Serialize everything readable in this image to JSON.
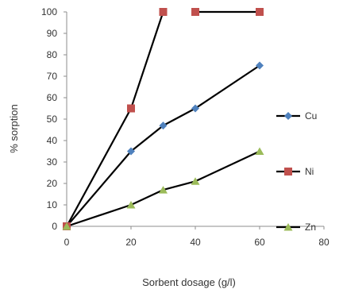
{
  "chart_data": {
    "type": "line",
    "title": "",
    "xlabel": "Sorbent dosage (g/l)",
    "ylabel": "% sorption",
    "xlim": [
      0,
      80
    ],
    "ylim": [
      0,
      100
    ],
    "x_ticks": [
      0,
      20,
      40,
      60,
      80
    ],
    "y_ticks": [
      0,
      10,
      20,
      30,
      40,
      50,
      60,
      70,
      80,
      90,
      100
    ],
    "grid": false,
    "legend_position": "right",
    "series": [
      {
        "name": "Cu",
        "color": "#000000",
        "marker": "diamond",
        "marker_color": "#4f81bd",
        "points": [
          {
            "x": 0,
            "y": 0
          },
          {
            "x": 20,
            "y": 35
          },
          {
            "x": 30,
            "y": 47
          },
          {
            "x": 40,
            "y": 55
          },
          {
            "x": 60,
            "y": 75
          }
        ]
      },
      {
        "name": "Ni",
        "color": "#000000",
        "marker": "square",
        "marker_color": "#c0504d",
        "points": [
          {
            "x": 0,
            "y": 0
          },
          {
            "x": 20,
            "y": 55
          },
          {
            "x": 30,
            "y": 100
          },
          {
            "x": 40,
            "y": 100
          },
          {
            "x": 60,
            "y": 100
          }
        ],
        "line_breaks_after_index": [
          2
        ]
      },
      {
        "name": "Zn",
        "color": "#000000",
        "marker": "triangle",
        "marker_color": "#9bbb59",
        "points": [
          {
            "x": 0,
            "y": 0
          },
          {
            "x": 20,
            "y": 10
          },
          {
            "x": 30,
            "y": 17
          },
          {
            "x": 40,
            "y": 21
          },
          {
            "x": 60,
            "y": 35
          }
        ]
      }
    ]
  }
}
